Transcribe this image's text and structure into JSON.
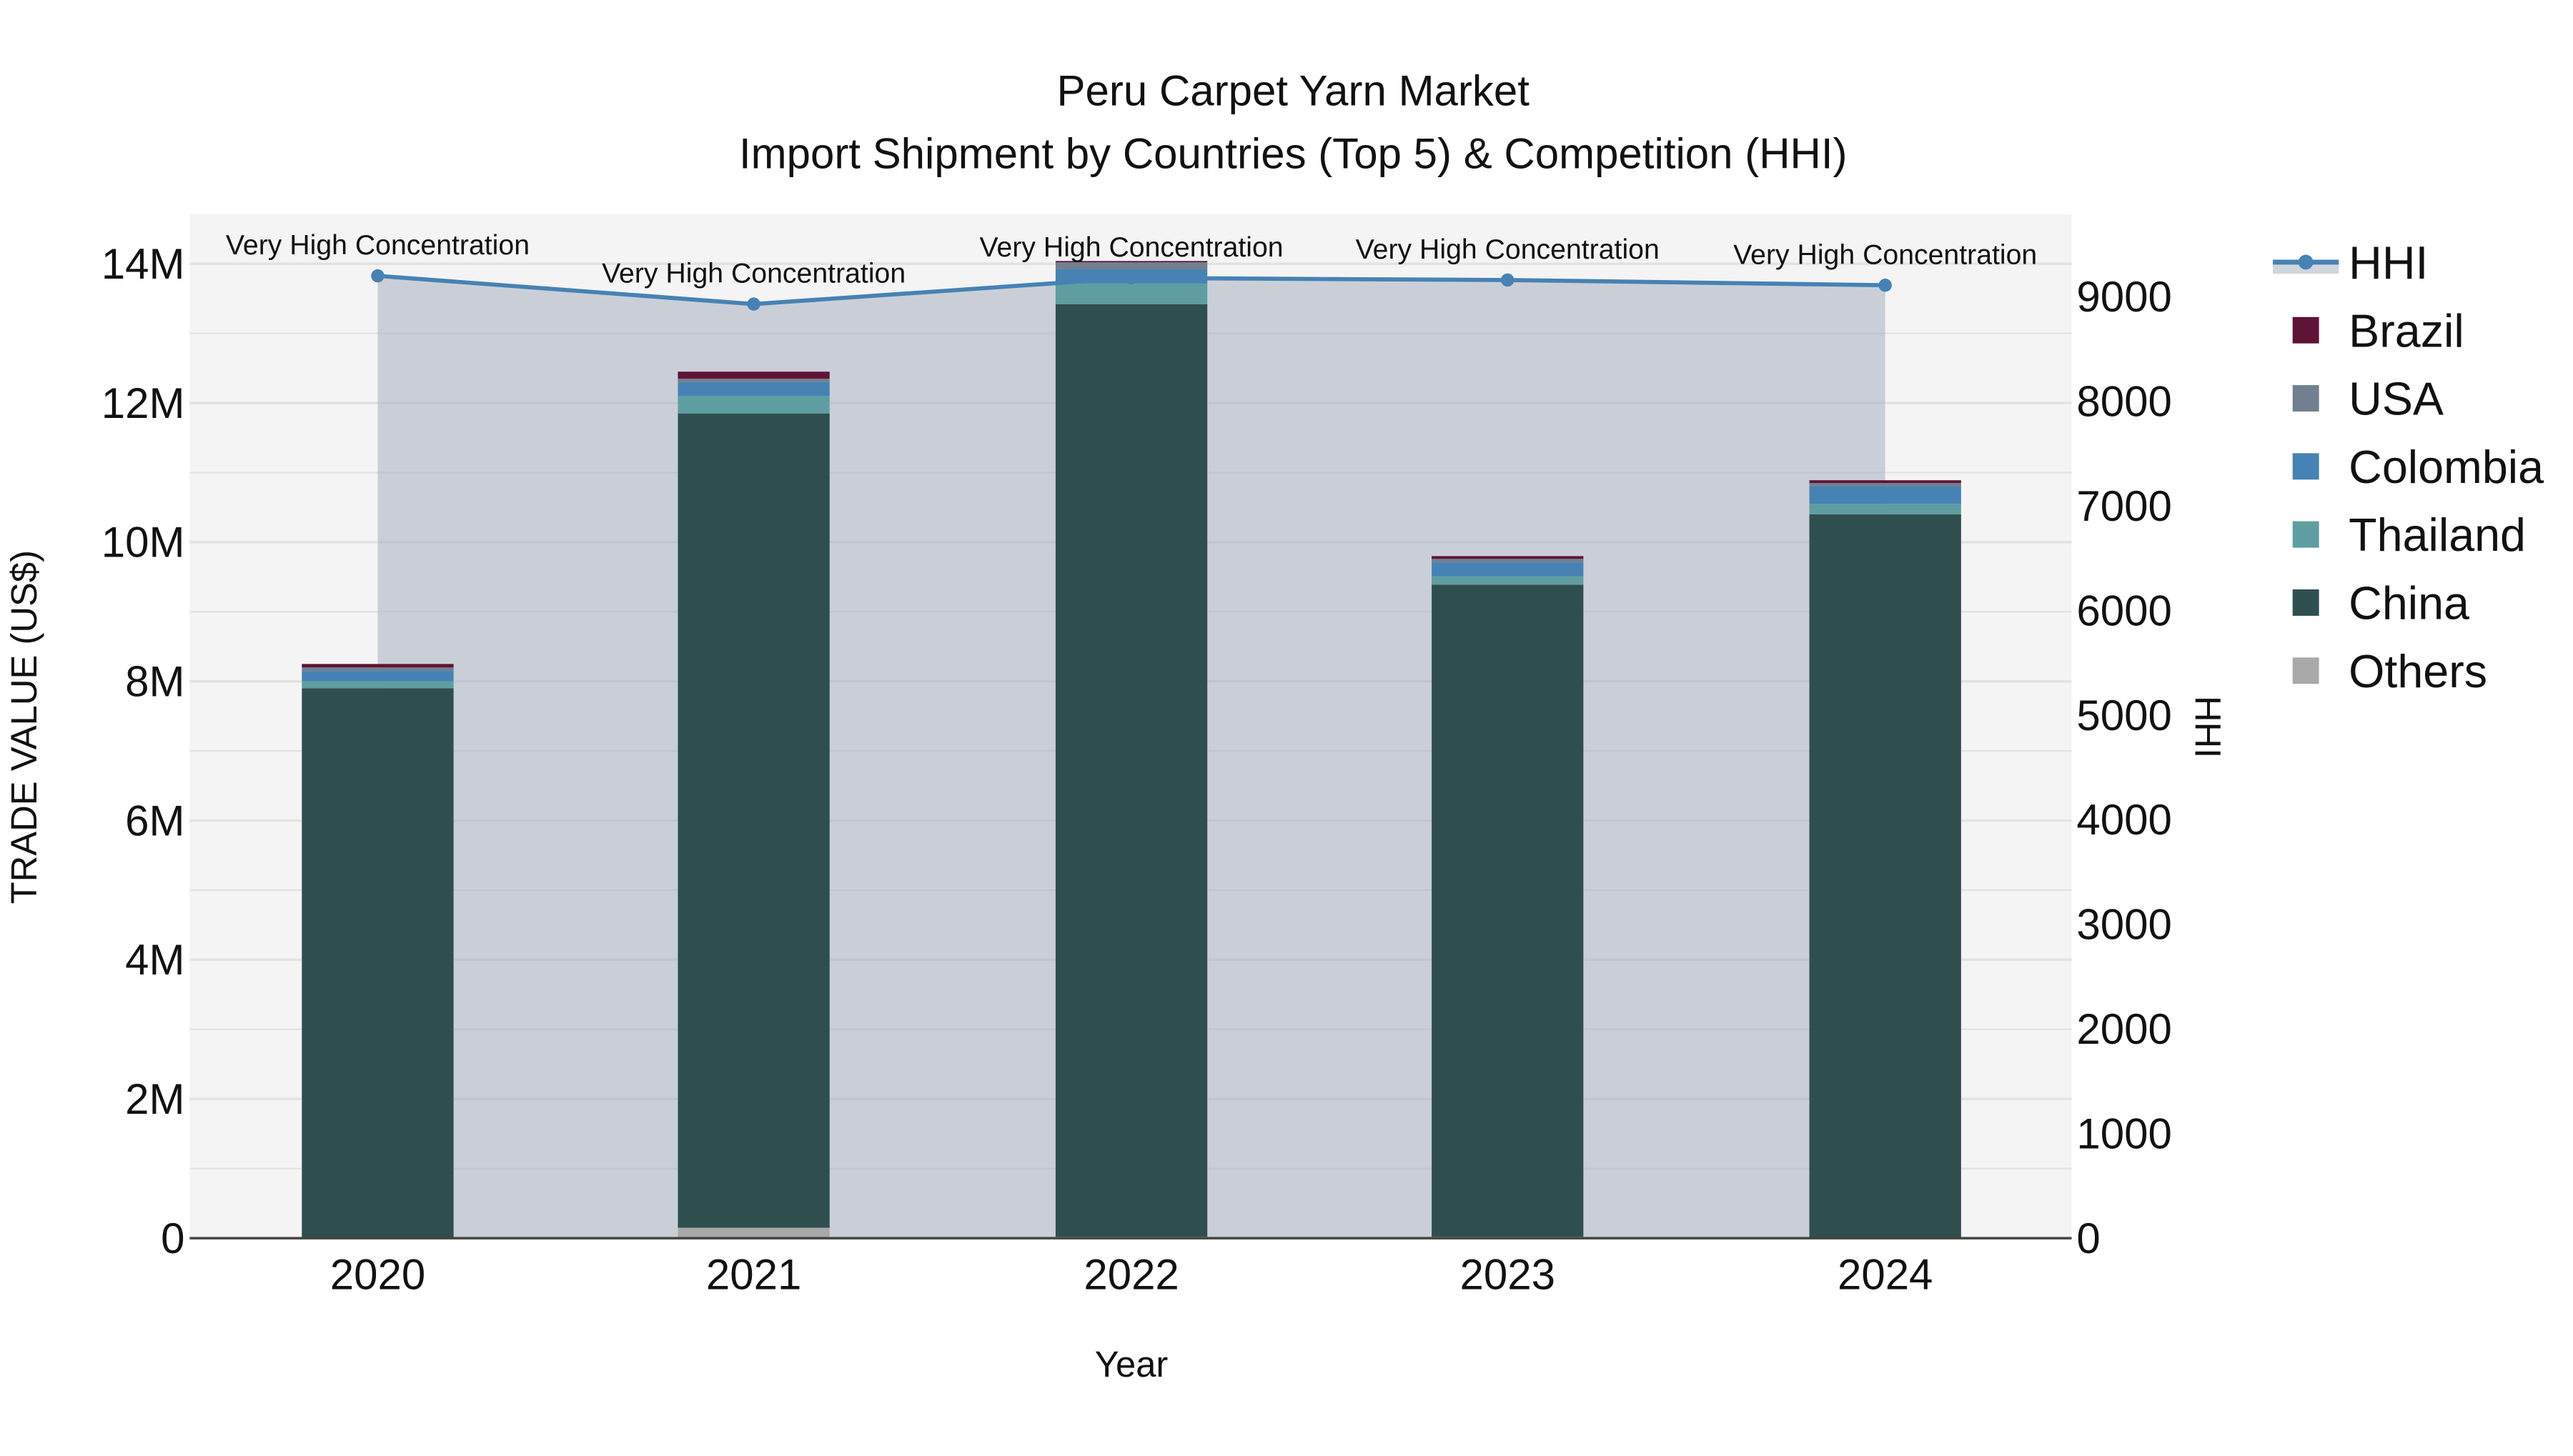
{
  "title_line1": "Peru Carpet Yarn Market",
  "title_line2": "Import Shipment by Countries (Top 5) & Competition (HHI)",
  "xlabel": "Year",
  "ylabel": "TRADE VALUE (US$)",
  "y2label": "HHI",
  "y_ticks": [
    "0",
    "2M",
    "4M",
    "6M",
    "8M",
    "10M",
    "12M",
    "14M"
  ],
  "y2_ticks": [
    "0",
    "1000",
    "2000",
    "3000",
    "4000",
    "5000",
    "6000",
    "7000",
    "8000",
    "9000"
  ],
  "legend": [
    {
      "name": "HHI",
      "color": "#4682B4"
    },
    {
      "name": "Brazil",
      "color": "#5F1436"
    },
    {
      "name": "USA",
      "color": "#708090"
    },
    {
      "name": "Colombia",
      "color": "#4682B4"
    },
    {
      "name": "Thailand",
      "color": "#5F9EA0"
    },
    {
      "name": "China",
      "color": "#2F4F4F"
    },
    {
      "name": "Others",
      "color": "#A9A9A9"
    }
  ],
  "annotation": "Very High Concentration",
  "chart_data": {
    "type": "bar",
    "title": "Peru Carpet Yarn Market — Import Shipment by Countries (Top 5) & Competition (HHI)",
    "xlabel": "Year",
    "ylabel": "TRADE VALUE (US$)",
    "y2label": "HHI",
    "ylim": [
      0,
      14700000
    ],
    "y2lim": [
      0,
      9650
    ],
    "categories": [
      "2020",
      "2021",
      "2022",
      "2023",
      "2024"
    ],
    "series": [
      {
        "name": "Others",
        "type": "bar",
        "values": [
          0,
          150000,
          20000,
          20000,
          0
        ]
      },
      {
        "name": "China",
        "type": "bar",
        "values": [
          7900000,
          11700000,
          13400000,
          9370000,
          10400000
        ]
      },
      {
        "name": "Thailand",
        "type": "bar",
        "values": [
          100000,
          250000,
          300000,
          120000,
          150000
        ]
      },
      {
        "name": "Colombia",
        "type": "bar",
        "values": [
          150000,
          200000,
          200000,
          200000,
          250000
        ]
      },
      {
        "name": "USA",
        "type": "bar",
        "values": [
          50000,
          50000,
          100000,
          50000,
          50000
        ]
      },
      {
        "name": "Brazil",
        "type": "bar",
        "values": [
          50000,
          100000,
          20000,
          40000,
          40000
        ]
      },
      {
        "name": "HHI",
        "type": "line+area",
        "axis": "y2",
        "values": [
          9200,
          8930,
          9180,
          9160,
          9110
        ]
      }
    ],
    "annotations": [
      "Very High Concentration",
      "Very High Concentration",
      "Very High Concentration",
      "Very High Concentration",
      "Very High Concentration"
    ],
    "legend_position": "right",
    "grid": true
  }
}
